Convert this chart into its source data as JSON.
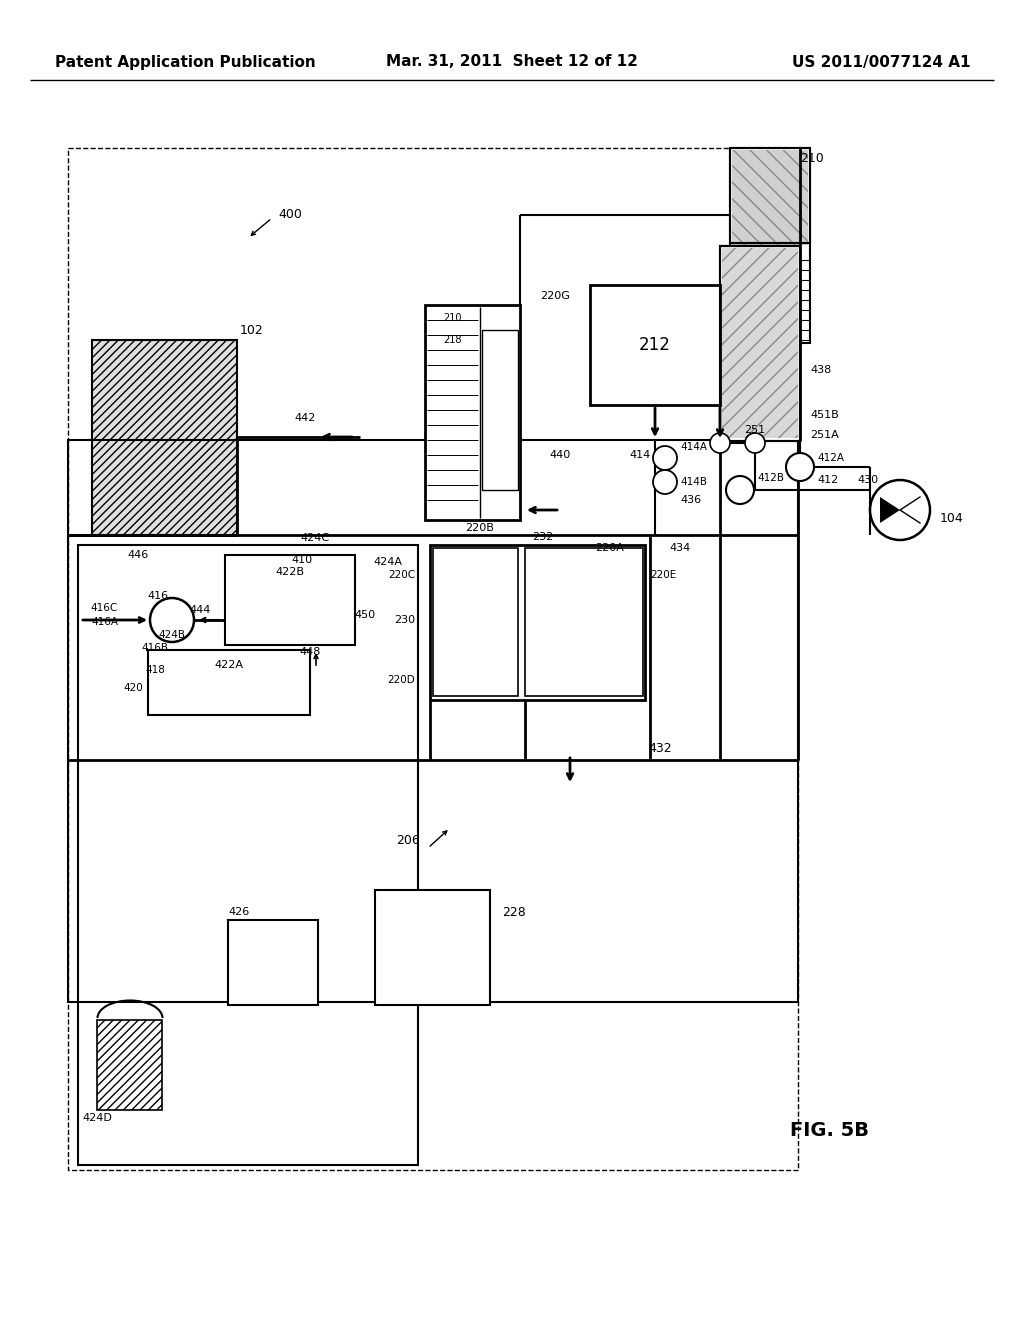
{
  "bg": "#ffffff",
  "header_left": "Patent Application Publication",
  "header_center": "Mar. 31, 2011  Sheet 12 of 12",
  "header_right": "US 2011/0077124 A1",
  "fig_label": "FIG. 5B"
}
